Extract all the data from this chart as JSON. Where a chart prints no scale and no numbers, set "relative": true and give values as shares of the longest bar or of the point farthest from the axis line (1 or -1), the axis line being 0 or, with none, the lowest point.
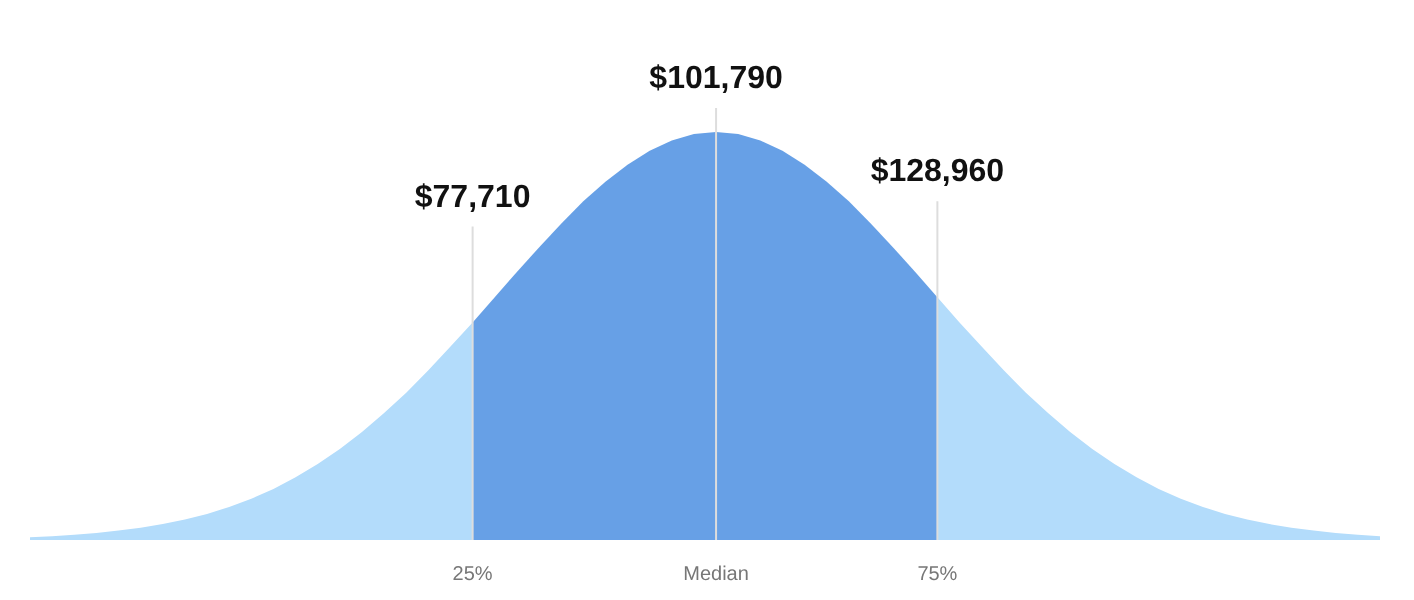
{
  "chart_data": {
    "type": "area",
    "relative": true,
    "tick_labels": "x",
    "legend": false,
    "categories": [
      null,
      null,
      null,
      null,
      null,
      null,
      null,
      null,
      null,
      null,
      null,
      null,
      null,
      null,
      null,
      null,
      null,
      null,
      null,
      null,
      "25%",
      null,
      null,
      null,
      null,
      null,
      null,
      null,
      null,
      null,
      null,
      "Median",
      null,
      null,
      null,
      null,
      null,
      null,
      null,
      null,
      null,
      "75%",
      null,
      null,
      null,
      null,
      null,
      null,
      null,
      null,
      null,
      null,
      null,
      null,
      null,
      null,
      null,
      null,
      null,
      null,
      null,
      null
    ],
    "series": [
      {
        "color": "#b3dcfb",
        "values": [
          0.007,
          0.009,
          0.013,
          0.017,
          0.023,
          0.03,
          0.039,
          0.05,
          0.064,
          0.081,
          0.101,
          0.125,
          0.154,
          0.186,
          0.223,
          0.265,
          0.311,
          0.361,
          0.416,
          0.474,
          0.533,
          null,
          null,
          null,
          null,
          null,
          null,
          null,
          null,
          null,
          null,
          null,
          null,
          null,
          null,
          null,
          null,
          null,
          null,
          null,
          null,
          0.595,
          0.533,
          0.474,
          0.416,
          0.361,
          0.311,
          0.265,
          0.223,
          0.186,
          0.154,
          0.125,
          0.101,
          0.081,
          0.064,
          0.05,
          0.039,
          0.03,
          0.023,
          0.017,
          0.013,
          0.009
        ]
      },
      {
        "color": "#67a0e6",
        "values": [
          null,
          null,
          null,
          null,
          null,
          null,
          null,
          null,
          null,
          null,
          null,
          null,
          null,
          null,
          null,
          null,
          null,
          null,
          null,
          null,
          0.533,
          0.595,
          0.657,
          0.717,
          0.775,
          0.83,
          0.878,
          0.92,
          0.954,
          0.979,
          0.995,
          1,
          0.995,
          0.979,
          0.954,
          0.92,
          0.878,
          0.83,
          0.775,
          0.717,
          0.657,
          0.595,
          null,
          null,
          null,
          null,
          null,
          null,
          null,
          null,
          null,
          null,
          null,
          null,
          null,
          null,
          null,
          null,
          null,
          null,
          null,
          null
        ]
      }
    ],
    "ref_lines": [
      {
        "axis": "x",
        "value": "25%",
        "label": "$77,710",
        "color": "#dddddd"
      },
      {
        "axis": "x",
        "value": "Median",
        "label": "$101,790",
        "color": "#dddddd"
      },
      {
        "axis": "x",
        "value": "75%",
        "label": "$128,960",
        "color": "#dddddd"
      }
    ]
  }
}
